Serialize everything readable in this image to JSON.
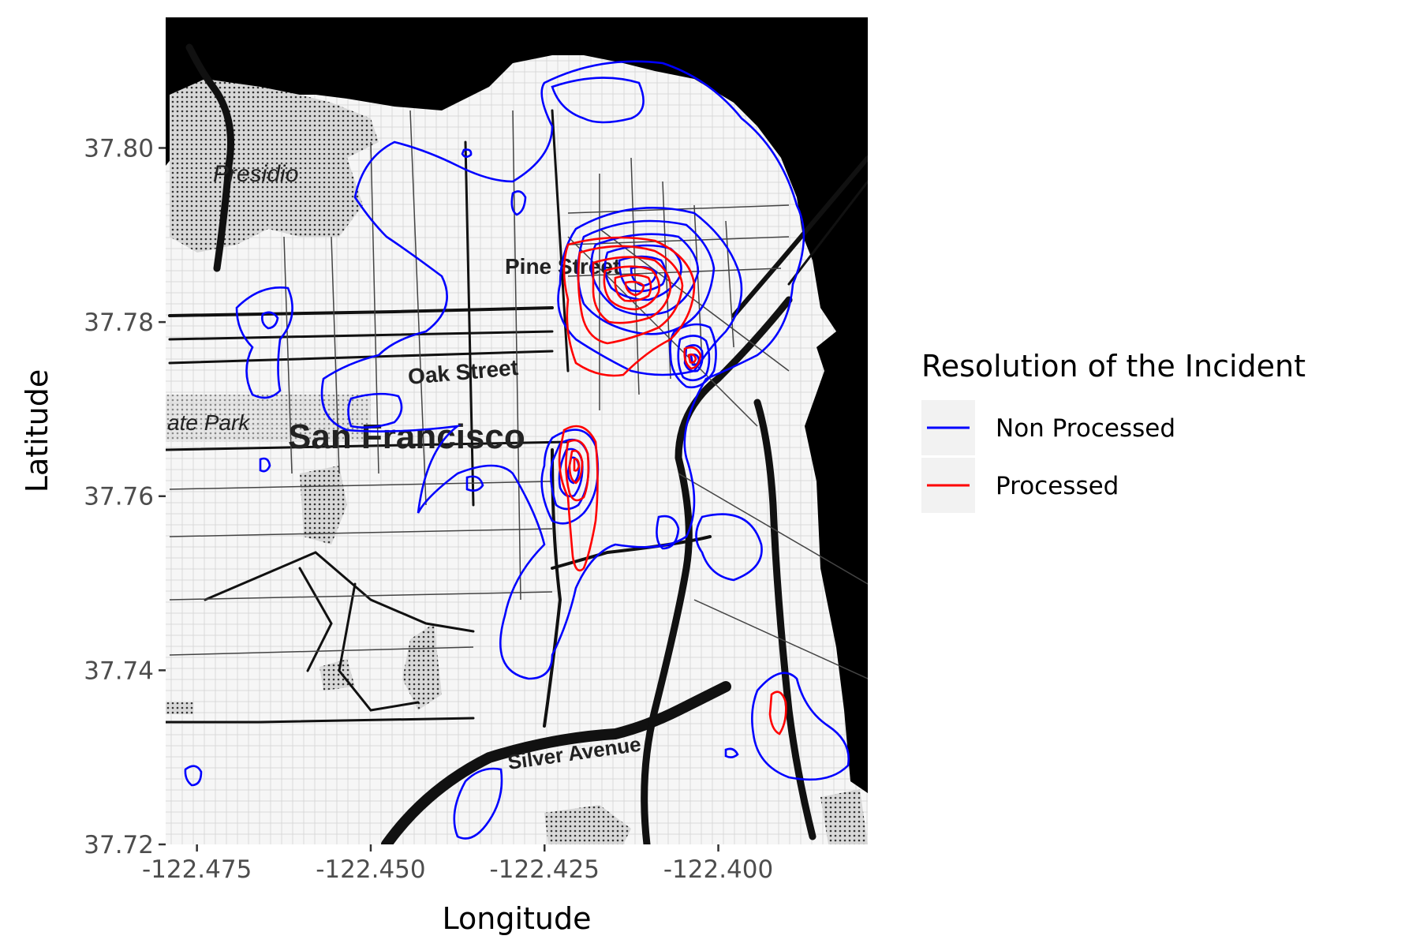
{
  "chart_data": {
    "type": "contour",
    "xlabel": "Longitude",
    "ylabel": "Latitude",
    "xlim": [
      -122.4795,
      -122.3785
    ],
    "ylim": [
      37.72,
      37.815
    ],
    "x_ticks": [
      {
        "value": -122.475,
        "label": "-122.475"
      },
      {
        "value": -122.45,
        "label": "-122.450"
      },
      {
        "value": -122.425,
        "label": "-122.425"
      },
      {
        "value": -122.4,
        "label": "-122.400"
      }
    ],
    "y_ticks": [
      {
        "value": 37.72,
        "label": "37.72"
      },
      {
        "value": 37.74,
        "label": "37.74"
      },
      {
        "value": 37.76,
        "label": "37.76"
      },
      {
        "value": 37.78,
        "label": "37.78"
      },
      {
        "value": 37.8,
        "label": "37.80"
      }
    ],
    "legend": {
      "title": "Resolution of the Incident",
      "position": "right",
      "entries": [
        {
          "label": "Non Processed",
          "color": "#0000ff"
        },
        {
          "label": "Processed",
          "color": "#ff0000"
        }
      ]
    },
    "series": [
      {
        "name": "Non Processed",
        "color": "#0000ff",
        "hotspots": [
          {
            "lon": -122.4115,
            "lat": 37.7835
          },
          {
            "lon": -122.4035,
            "lat": 37.7755
          },
          {
            "lon": -122.4195,
            "lat": 37.7645
          }
        ]
      },
      {
        "name": "Processed",
        "color": "#ff0000",
        "hotspots": [
          {
            "lon": -122.4125,
            "lat": 37.7835
          },
          {
            "lon": -122.4035,
            "lat": 37.7755
          },
          {
            "lon": -122.4195,
            "lat": 37.7645
          },
          {
            "lon": -122.3915,
            "lat": 37.7355
          }
        ]
      }
    ]
  },
  "map": {
    "labels": {
      "presidio": "Presidio",
      "pine": "Pine Street",
      "oak": "Oak Street",
      "gate_park": "ate Park",
      "sf": "San Francisco",
      "silver": "Silver Avenue"
    },
    "water_color": "#000000",
    "land_color": "#f4f4f4"
  }
}
